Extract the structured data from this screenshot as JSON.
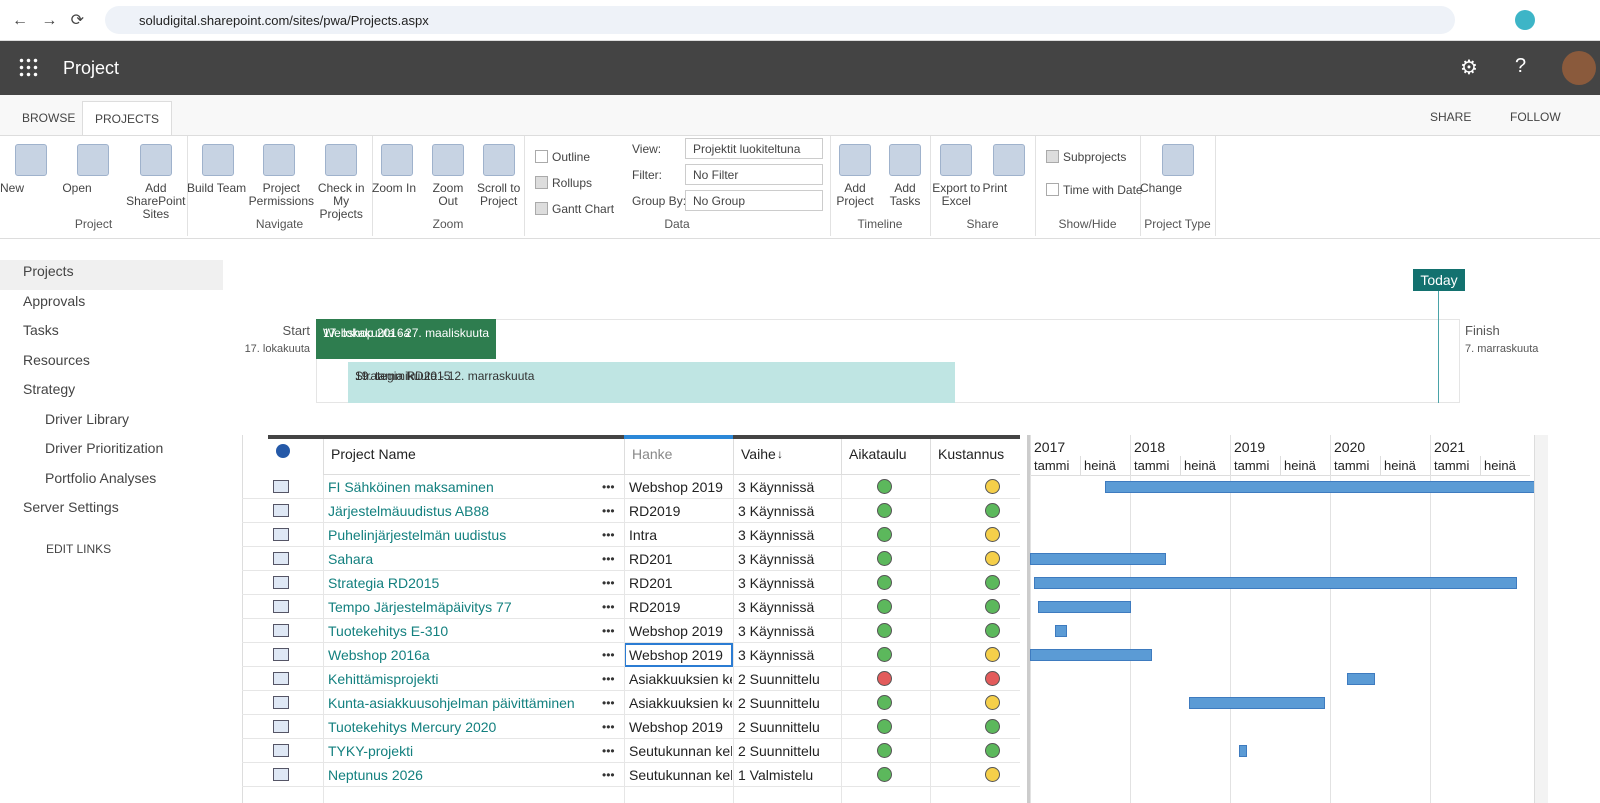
{
  "browser": {
    "url": "soludigital.sharepoint.com/sites/pwa/Projects.aspx"
  },
  "app": {
    "title": "Project"
  },
  "tabs": [
    "BROWSE",
    "PROJECTS"
  ],
  "top_actions": [
    "SHARE",
    "FOLLOW"
  ],
  "ribbon": {
    "groups": [
      {
        "label": "Project",
        "buttons": [
          "New",
          "Open",
          "Add SharePoint Sites"
        ]
      },
      {
        "label": "Navigate",
        "buttons": [
          "Build Team",
          "Project Permissions",
          "Check in My Projects"
        ]
      },
      {
        "label": "Zoom",
        "buttons": [
          "Zoom In",
          "Zoom Out",
          "Scroll to Project"
        ]
      },
      {
        "label": "Data",
        "checks": [
          {
            "label": "Outline",
            "checked": false
          },
          {
            "label": "Rollups",
            "checked": true
          },
          {
            "label": "Gantt Chart",
            "checked": true
          }
        ],
        "fields": [
          {
            "label": "View:",
            "value": "Projektit luokiteltuna"
          },
          {
            "label": "Filter:",
            "value": "No Filter"
          },
          {
            "label": "Group By:",
            "value": "No Group"
          }
        ]
      },
      {
        "label": "Timeline",
        "buttons": [
          "Add Project",
          "Add Tasks"
        ]
      },
      {
        "label": "Share",
        "buttons": [
          "Export to Excel",
          "Print"
        ]
      },
      {
        "label": "Show/Hide",
        "checks": [
          {
            "label": "Subprojects",
            "checked": true
          },
          {
            "label": "Time with Date",
            "checked": false
          }
        ]
      },
      {
        "label": "Project Type",
        "buttons": [
          "Change"
        ]
      }
    ]
  },
  "nav": {
    "items": [
      "Projects",
      "Approvals",
      "Tasks",
      "Resources",
      "Strategy"
    ],
    "sub_items": [
      "Driver Library",
      "Driver Prioritization",
      "Portfolio Analyses"
    ],
    "after": [
      "Server Settings"
    ],
    "edit": "EDIT LINKS"
  },
  "timeline": {
    "today": "Today",
    "start": "Start",
    "start_date": "17. lokakuuta",
    "finish": "Finish",
    "finish_date": "7. marraskuuta",
    "bars": [
      {
        "name": "Webshop 2016a",
        "dates": "17. lokakuuta - 27. maaliskuuta"
      },
      {
        "name": "Strategia RD2015",
        "dates": "19. tammikuuta - 12. marraskuuta"
      }
    ]
  },
  "grid": {
    "columns": [
      "Project Name",
      "Hanke",
      "Vaihe",
      "Aikataulu",
      "Kustannus"
    ],
    "rows": [
      {
        "name": "FI Sähköinen maksaminen",
        "hanke": "Webshop 2019",
        "vaihe": "3 Käynnissä",
        "aikataulu": "green",
        "kustannus": "yellow",
        "start": 2017.75,
        "end": 2022.1
      },
      {
        "name": "Järjestelmäuudistus AB88",
        "hanke": "RD2019",
        "vaihe": "3 Käynnissä",
        "aikataulu": "green",
        "kustannus": "green",
        "start": null,
        "end": null
      },
      {
        "name": "Puhelinjärjestelmän uudistus",
        "hanke": "Intra",
        "vaihe": "3 Käynnissä",
        "aikataulu": "green",
        "kustannus": "yellow",
        "start": null,
        "end": null
      },
      {
        "name": "Sahara",
        "hanke": "RD201",
        "vaihe": "3 Käynnissä",
        "aikataulu": "green",
        "kustannus": "yellow",
        "start": 2017.0,
        "end": 2018.36
      },
      {
        "name": "Strategia RD2015",
        "hanke": "RD201",
        "vaihe": "3 Käynnissä",
        "aikataulu": "green",
        "kustannus": "green",
        "start": 2017.04,
        "end": 2021.87
      },
      {
        "name": "Tempo Järjestelmäpäivitys 77",
        "hanke": "RD2019",
        "vaihe": "3 Käynnissä",
        "aikataulu": "green",
        "kustannus": "green",
        "start": 2017.08,
        "end": 2018.01
      },
      {
        "name": "Tuotekehitys E-310",
        "hanke": "Webshop 2019",
        "vaihe": "3 Käynnissä",
        "aikataulu": "green",
        "kustannus": "green",
        "start": 2017.25,
        "end": 2017.37
      },
      {
        "name": "Webshop 2016a",
        "hanke": "Webshop 2019",
        "vaihe": "3 Käynnissä",
        "aikataulu": "green",
        "kustannus": "yellow",
        "start": 2017.0,
        "end": 2018.22
      },
      {
        "name": "Kehittämisprojekti",
        "hanke": "Asiakkuuksien ke",
        "vaihe": "2 Suunnittelu",
        "aikataulu": "red",
        "kustannus": "red",
        "start": 2020.17,
        "end": 2020.45
      },
      {
        "name": "Kunta-asiakkuusohjelman päivittäminen",
        "hanke": "Asiakkuuksien ke",
        "vaihe": "2 Suunnittelu",
        "aikataulu": "green",
        "kustannus": "yellow",
        "start": 2018.59,
        "end": 2019.95
      },
      {
        "name": "Tuotekehitys Mercury 2020",
        "hanke": "Webshop 2019",
        "vaihe": "2 Suunnittelu",
        "aikataulu": "green",
        "kustannus": "green",
        "start": null,
        "end": null
      },
      {
        "name": "TYKY-projekti",
        "hanke": "Seutukunnan kel",
        "vaihe": "2 Suunnittelu",
        "aikataulu": "green",
        "kustannus": "green",
        "start": 2019.09,
        "end": 2019.17
      },
      {
        "name": "Neptunus 2026",
        "hanke": "Seutukunnan kel",
        "vaihe": "1 Valmistelu",
        "aikataulu": "green",
        "kustannus": "yellow",
        "start": null,
        "end": null
      }
    ]
  },
  "gantt": {
    "years": [
      2017,
      2018,
      2019,
      2020,
      2021
    ],
    "halves": [
      "tammi",
      "heinä"
    ],
    "xlim": [
      2017,
      2022
    ]
  }
}
